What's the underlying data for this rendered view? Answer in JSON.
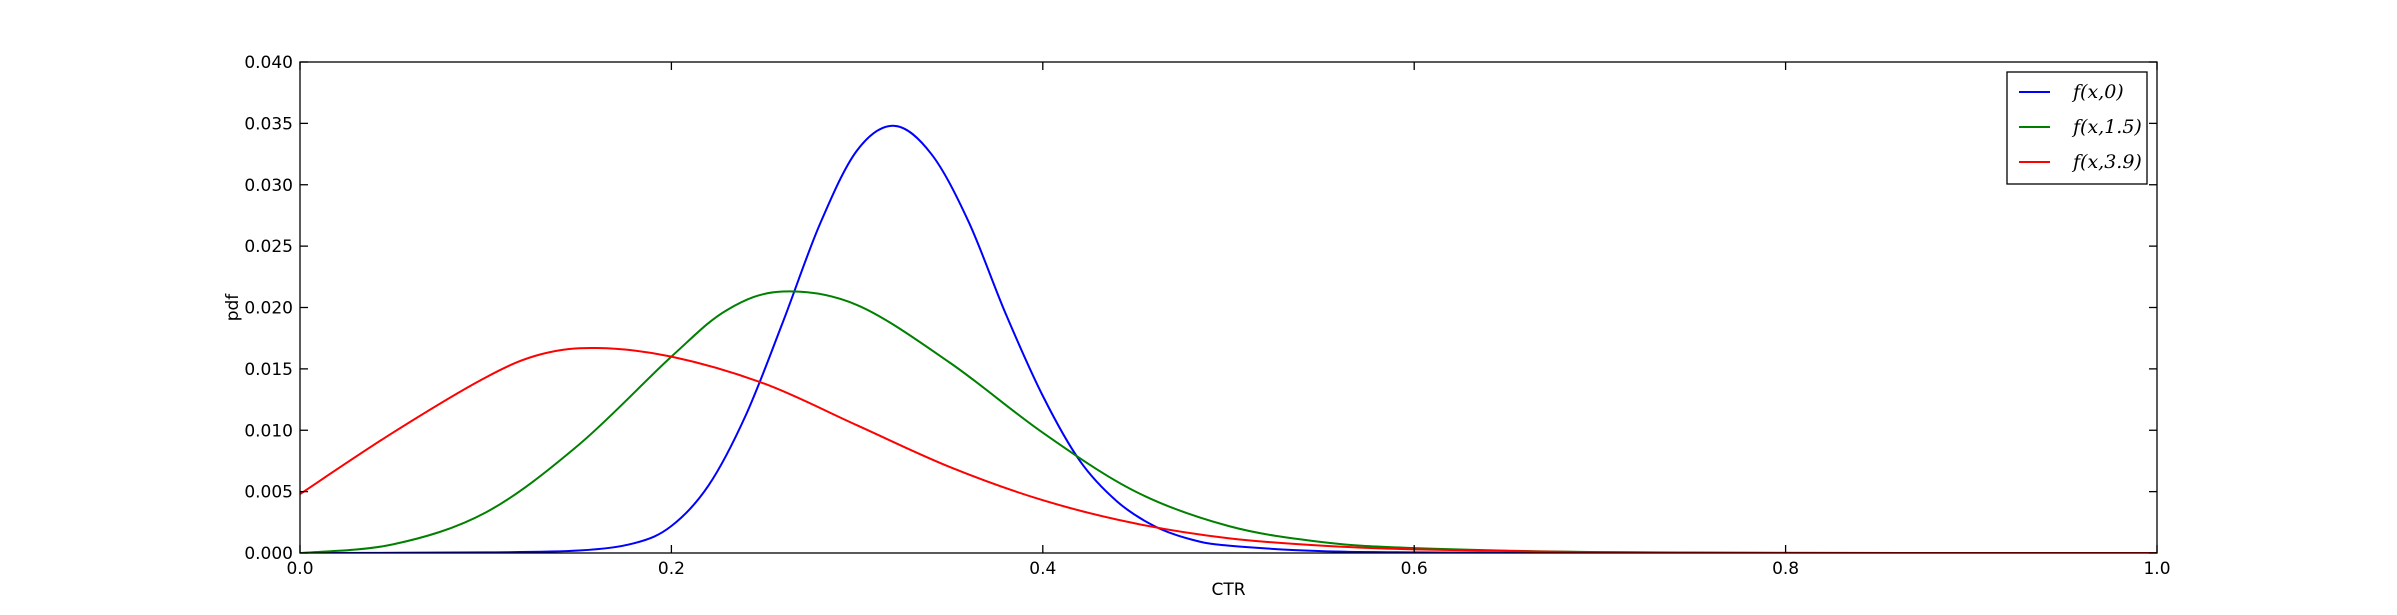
{
  "chart_data": {
    "type": "line",
    "title": "",
    "xlabel": "CTR",
    "ylabel": "pdf",
    "xlim": [
      0.0,
      1.0
    ],
    "ylim": [
      0.0,
      0.04
    ],
    "xticks": [
      "0.0",
      "0.2",
      "0.4",
      "0.6",
      "0.8",
      "1.0"
    ],
    "yticks": [
      "0.000",
      "0.005",
      "0.010",
      "0.015",
      "0.020",
      "0.025",
      "0.030",
      "0.035",
      "0.040"
    ],
    "grid": false,
    "legend_position": "top-right",
    "series": [
      {
        "name": "f(x,0)",
        "color": "#0000ff",
        "x": [
          0.0,
          0.1,
          0.15,
          0.18,
          0.2,
          0.22,
          0.24,
          0.26,
          0.28,
          0.3,
          0.32,
          0.34,
          0.36,
          0.38,
          0.4,
          0.42,
          0.44,
          0.46,
          0.48,
          0.5,
          0.55,
          0.6,
          0.7,
          0.8,
          0.9,
          1.0
        ],
        "y": [
          0.0,
          5e-05,
          0.0002,
          0.0008,
          0.0022,
          0.0055,
          0.0112,
          0.0188,
          0.0268,
          0.0328,
          0.0348,
          0.0325,
          0.027,
          0.0195,
          0.0128,
          0.0075,
          0.0042,
          0.0022,
          0.0011,
          0.0006,
          0.00015,
          5e-05,
          0.0,
          0.0,
          0.0,
          0.0
        ]
      },
      {
        "name": "f(x,1.5)",
        "color": "#008000",
        "x": [
          0.0,
          0.05,
          0.1,
          0.15,
          0.2,
          0.23,
          0.26,
          0.3,
          0.35,
          0.4,
          0.45,
          0.5,
          0.55,
          0.6,
          0.7,
          0.8,
          0.9,
          1.0
        ],
        "y": [
          0.0,
          0.0007,
          0.0033,
          0.0088,
          0.016,
          0.0198,
          0.0213,
          0.0202,
          0.0155,
          0.0098,
          0.005,
          0.0022,
          0.0009,
          0.0004,
          7e-05,
          1e-05,
          0.0,
          0.0
        ]
      },
      {
        "name": "f(x,3.9)",
        "color": "#ff0000",
        "x": [
          0.0,
          0.05,
          0.1,
          0.13,
          0.16,
          0.2,
          0.25,
          0.3,
          0.35,
          0.4,
          0.45,
          0.5,
          0.55,
          0.6,
          0.7,
          0.8,
          0.9,
          1.0
        ],
        "y": [
          0.0048,
          0.0098,
          0.0143,
          0.0162,
          0.0167,
          0.016,
          0.0138,
          0.0104,
          0.007,
          0.0043,
          0.0024,
          0.0012,
          0.0006,
          0.0003,
          6e-05,
          1e-05,
          0.0,
          0.0
        ]
      }
    ]
  }
}
